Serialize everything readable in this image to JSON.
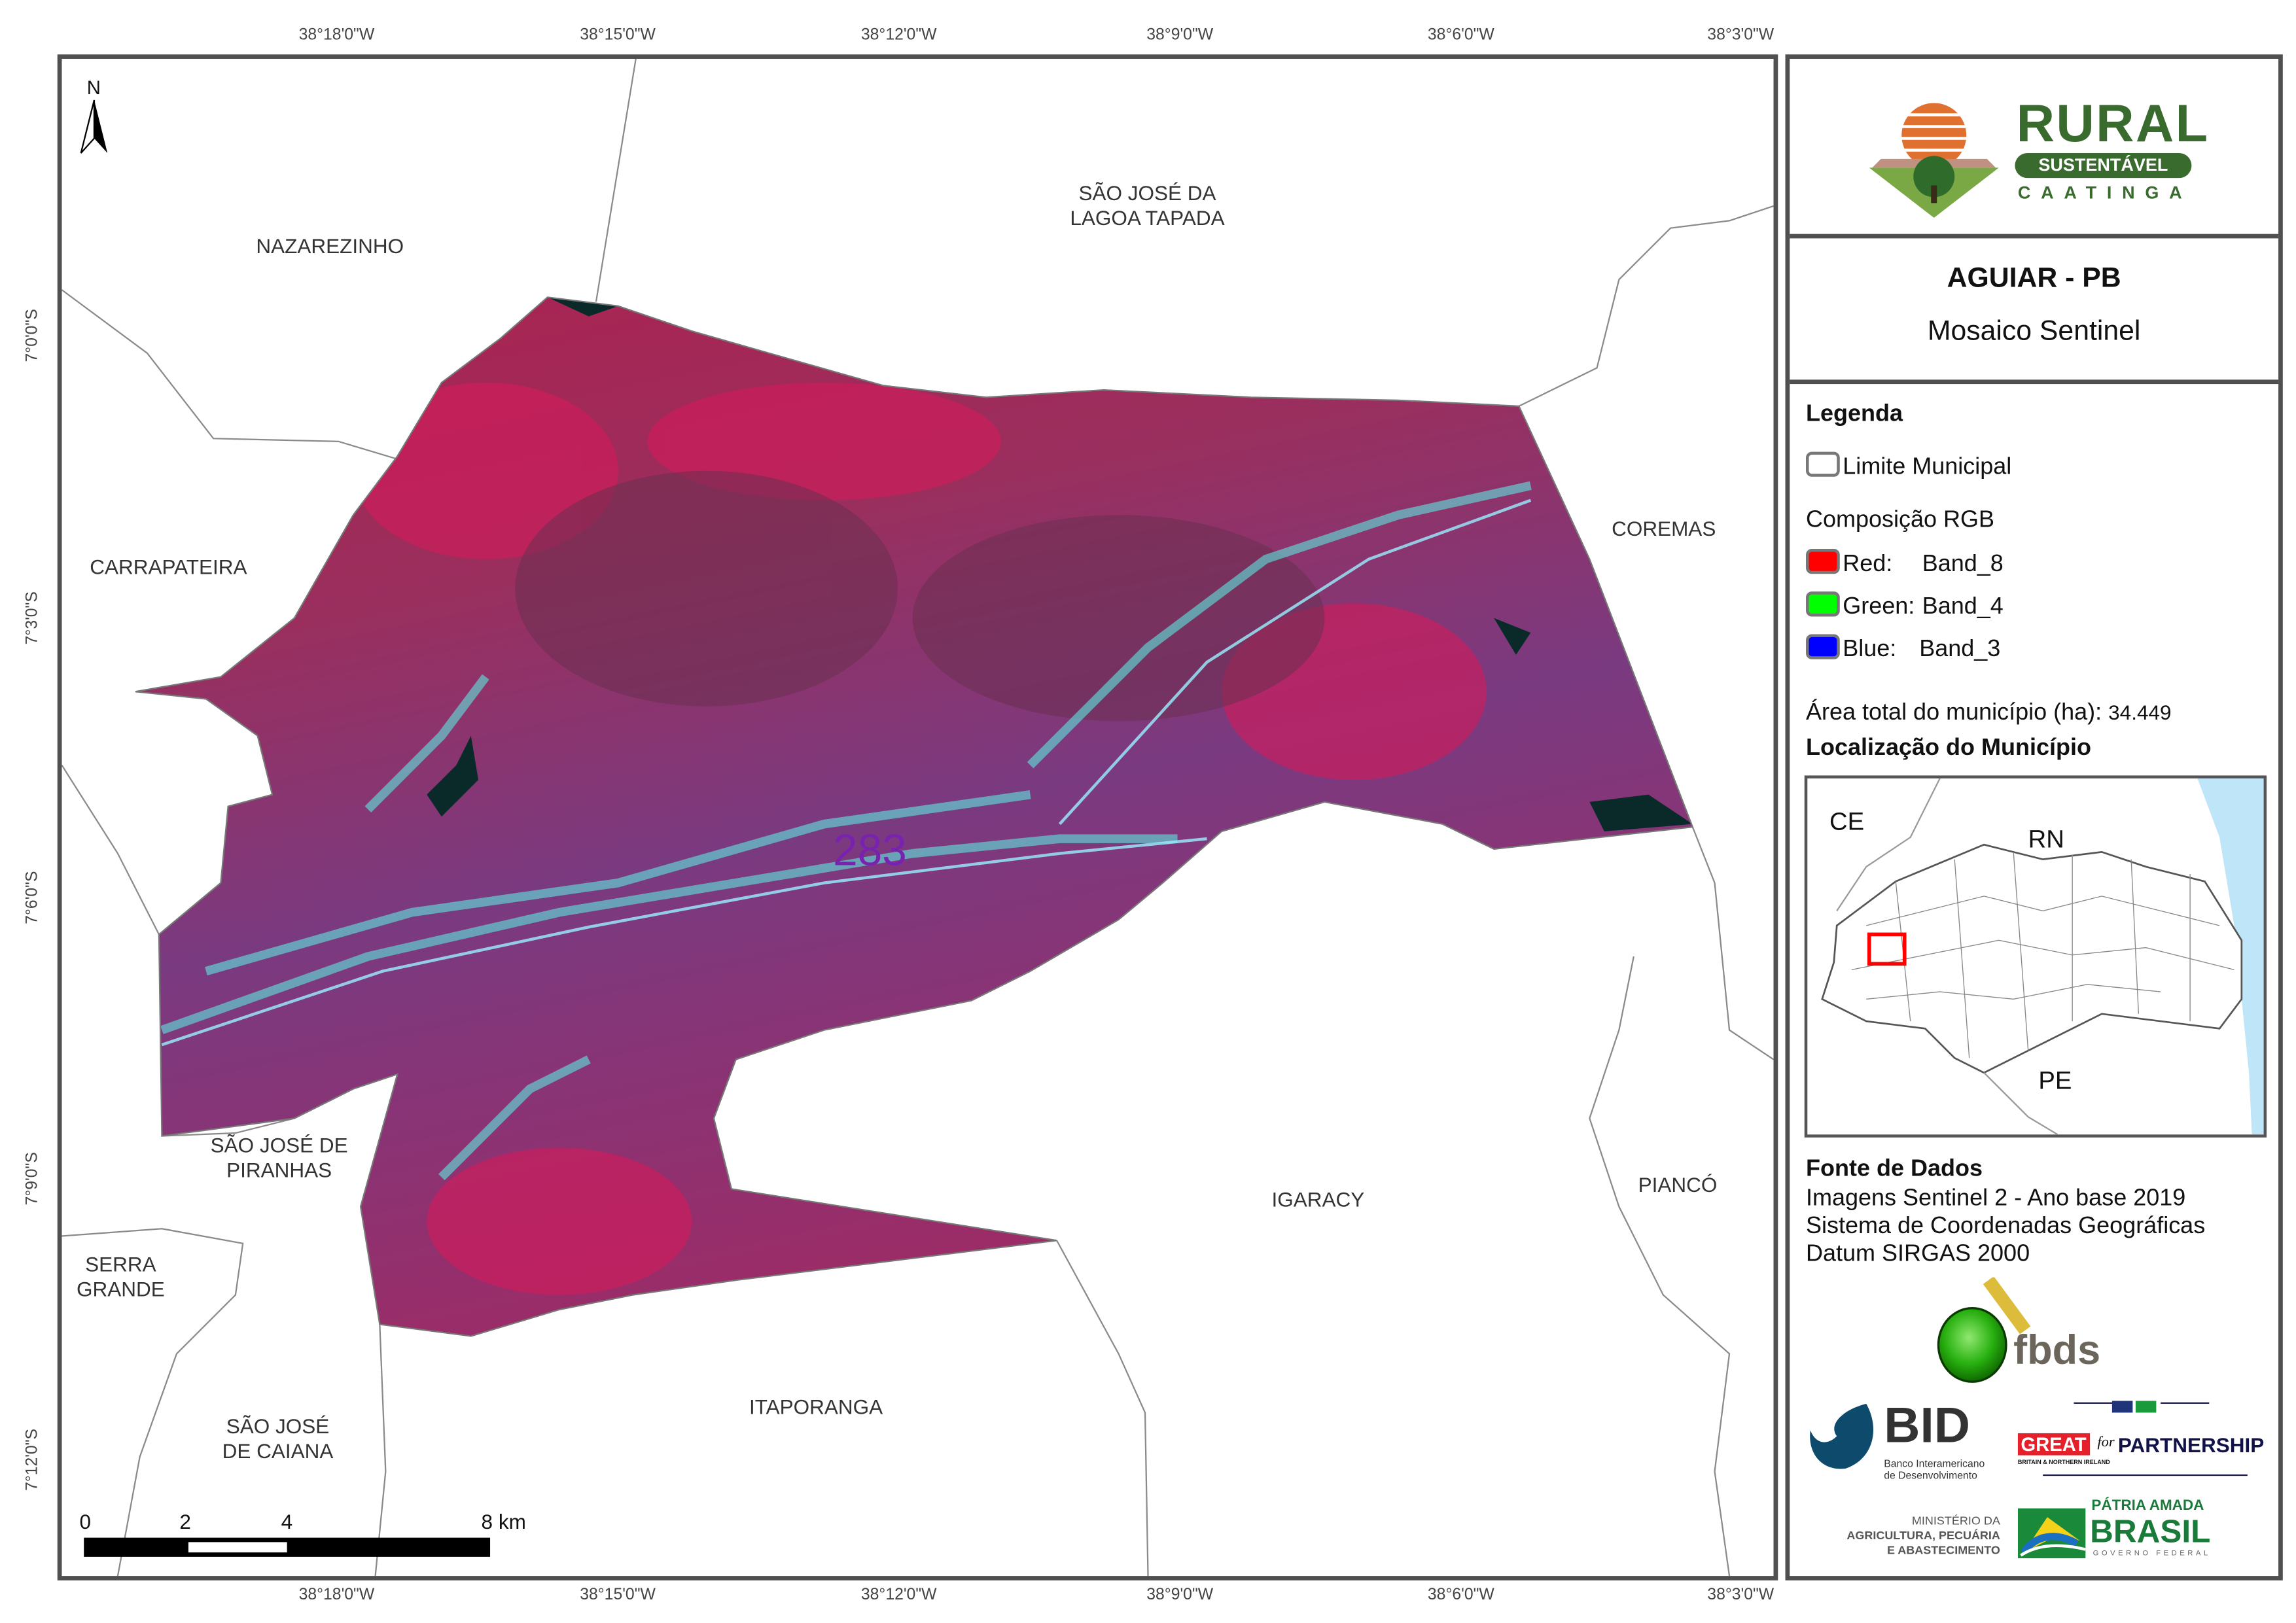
{
  "map": {
    "north_arrow_label": "N",
    "polygon_label": "283",
    "top_ticks": [
      "38°18'0\"W",
      "38°15'0\"W",
      "38°12'0\"W",
      "38°9'0\"W",
      "38°6'0\"W",
      "38°3'0\"W"
    ],
    "bottom_ticks": [
      "38°18'0\"W",
      "38°15'0\"W",
      "38°12'0\"W",
      "38°9'0\"W",
      "38°6'0\"W",
      "38°3'0\"W"
    ],
    "left_ticks": [
      "7°0'0\"S",
      "7°3'0\"S",
      "7°6'0\"S",
      "7°9'0\"S",
      "7°12'0\"S"
    ],
    "places": {
      "nazarezinho": "NAZAREZINHO",
      "sao_jose_lagoa_tapada_1": "SÃO JOSÉ DA",
      "sao_jose_lagoa_tapada_2": "LAGOA TAPADA",
      "carrapateira": "CARRAPATEIRA",
      "coremas": "COREMAS",
      "sao_jose_piranhas_1": "SÃO JOSÉ DE",
      "sao_jose_piranhas_2": "PIRANHAS",
      "serra_grande_1": "SERRA",
      "serra_grande_2": "GRANDE",
      "igaracy": "IGARACY",
      "pianco": "PIANCÓ",
      "sao_jose_caiana_1": "SÃO JOSÉ",
      "sao_jose_caiana_2": "DE CAIANA",
      "itaporanga": "ITAPORANGA"
    },
    "scale_bar": {
      "labels": [
        "0",
        "2",
        "4",
        "8 km"
      ]
    },
    "colors": {
      "frame": "#505050",
      "boundary": "#8a8a8a",
      "vegetation": "#c0305e",
      "bare": "#5ee8e0",
      "water": "#0a2a2a"
    }
  },
  "panel": {
    "logo": {
      "line1": "RURAL",
      "line2": "SUSTENTÁVEL",
      "line3": "CAATINGA",
      "color": "#3a6b2e"
    },
    "title": "AGUIAR - PB",
    "subtitle": "Mosaico Sentinel",
    "legend_title": "Legenda",
    "limit_label": "Limite Municipal",
    "rgb_title": "Composição RGB",
    "bands": [
      {
        "channel": "Red:",
        "band": "Band_8",
        "color": "#ff0000"
      },
      {
        "channel": "Green:",
        "band": "Band_4",
        "color": "#00ff00"
      },
      {
        "channel": "Blue:",
        "band": "Band_3",
        "color": "#0000ff"
      }
    ],
    "area_label": "Área total do município (ha):",
    "area_value": "34.449",
    "location_title": "Localização do Município",
    "inset": {
      "labels": [
        "CE",
        "RN",
        "PE"
      ],
      "highlight_color": "#ff0000",
      "ocean_color": "#bfe6f8"
    },
    "source_title": "Fonte de Dados",
    "source_lines": [
      "Imagens Sentinel 2 - Ano base 2019",
      "Sistema de Coordenadas Geográficas",
      "Datum SIRGAS 2000"
    ],
    "logos": {
      "fbds": "fbds",
      "bid": "BID",
      "bid_sub1": "Banco Interamericano",
      "bid_sub2": "de Desenvolvimento",
      "great": "GREAT",
      "great_for": "for",
      "great_partnership": "PARTNERSHIP",
      "great_sub": "BRITAIN & NORTHERN IRELAND",
      "ministerio1": "MINISTÉRIO DA",
      "ministerio2": "AGRICULTURA, PECUÁRIA",
      "ministerio3": "E ABASTECIMENTO",
      "patria1": "PÁTRIA AMADA",
      "patria2": "BRASIL",
      "patria3": "GOVERNO FEDERAL"
    }
  }
}
